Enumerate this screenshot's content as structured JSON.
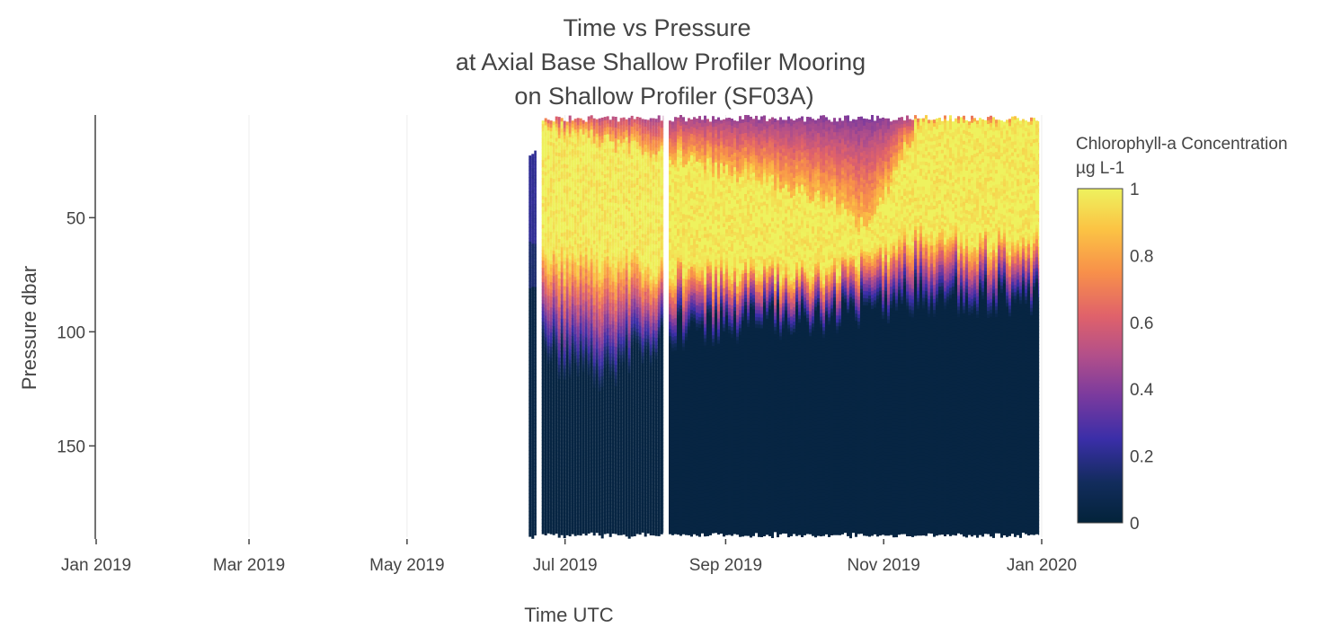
{
  "chart_data": {
    "type": "heatmap",
    "title_lines": [
      "Time vs Pressure",
      "at Axial Base Shallow Profiler Mooring",
      "on Shallow Profiler (SF03A)"
    ],
    "xlabel": "Time UTC",
    "ylabel": "Pressure dbar",
    "x_ticks": [
      "2019-01-01",
      "2019-03-01",
      "2019-05-01",
      "2019-07-01",
      "2019-09-01",
      "2019-11-01",
      "2020-01-01"
    ],
    "x_tick_labels": [
      "Jan 2019",
      "Mar 2019",
      "May 2019",
      "Jul 2019",
      "Sep 2019",
      "Nov 2019",
      "Jan 2020"
    ],
    "xlim": [
      "2019-01-01",
      "2020-01-01"
    ],
    "y_ticks": [
      50,
      100,
      150
    ],
    "y_tick_labels": [
      "50",
      "100",
      "150"
    ],
    "ylim": [
      5,
      190
    ],
    "y_reversed": true,
    "grid": true,
    "colorbar": {
      "title_lines": [
        "Chlorophyll-a Concentration",
        "µg L-1"
      ],
      "range": [
        0,
        1
      ],
      "ticks": [
        0,
        0.2,
        0.4,
        0.6,
        0.8,
        1
      ],
      "tick_labels": [
        "0",
        "0.2",
        "0.4",
        "0.6",
        "0.8",
        "1"
      ],
      "colorscale": [
        [
          0.0,
          "#03233a"
        ],
        [
          0.12,
          "#122c5c"
        ],
        [
          0.25,
          "#3a2ea8"
        ],
        [
          0.38,
          "#7a3a9e"
        ],
        [
          0.5,
          "#b24f8a"
        ],
        [
          0.62,
          "#e0626a"
        ],
        [
          0.75,
          "#f8904a"
        ],
        [
          0.88,
          "#fbc444"
        ],
        [
          1.0,
          "#eef25e"
        ]
      ]
    },
    "data_segments": [
      {
        "start": "2019-06-17",
        "end": "2019-06-20",
        "p_top": 20,
        "p_bottom": 190,
        "chl_max_top": 0.2
      },
      {
        "start": "2019-06-22",
        "end": "2019-08-08",
        "p_top": 5,
        "p_bottom": 189,
        "chl_max_top": 1.0
      },
      {
        "start": "2019-08-10",
        "end": "2019-12-31",
        "p_top": 5,
        "p_bottom": 189,
        "chl_max_top": 1.0
      }
    ],
    "layer_profile": [
      {
        "date": "2019-06-22",
        "top_sat": 10,
        "bottom_sat": 65,
        "decay_to": 110
      },
      {
        "date": "2019-07-15",
        "top_sat": 15,
        "bottom_sat": 66,
        "decay_to": 120
      },
      {
        "date": "2019-08-10",
        "top_sat": 22,
        "bottom_sat": 70,
        "decay_to": 100
      },
      {
        "date": "2019-09-15",
        "top_sat": 33,
        "bottom_sat": 72,
        "decay_to": 95
      },
      {
        "date": "2019-10-10",
        "top_sat": 42,
        "bottom_sat": 72,
        "decay_to": 95
      },
      {
        "date": "2019-10-25",
        "top_sat": 55,
        "bottom_sat": 65,
        "decay_to": 90
      },
      {
        "date": "2019-11-15",
        "top_sat": 5,
        "bottom_sat": 55,
        "decay_to": 85
      },
      {
        "date": "2019-12-31",
        "top_sat": 5,
        "bottom_sat": 60,
        "decay_to": 85
      }
    ]
  }
}
